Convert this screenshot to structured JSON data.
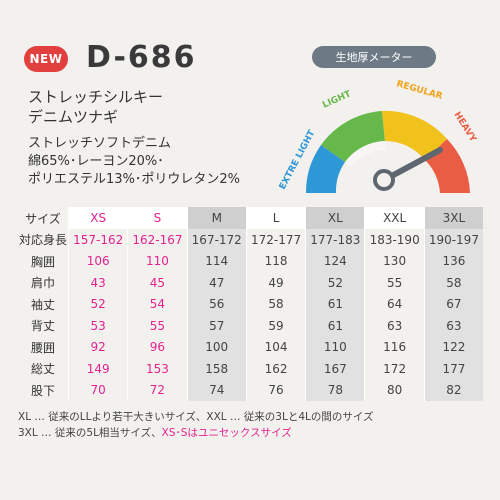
{
  "badge": "NEW",
  "model": "D-686",
  "name_lines": [
    "ストレッチシルキー",
    "デニムツナギ"
  ],
  "spec_lines": [
    "ストレッチソフトデニム",
    "綿65%･レーヨン20%･",
    "ポリエステル13%･ポリウレタン2%"
  ],
  "gauge": {
    "title": "生地厚メーター",
    "levels": [
      "EXTRE LIGHT",
      "LIGHT",
      "REGULAR",
      "HEAVY"
    ],
    "pointer_level": "HEAVY",
    "colors": {
      "extra_light": "#2e97d6",
      "light": "#67b84a",
      "regular": "#f0c21b",
      "heavy": "#ea5d45",
      "needle": "#5e6670"
    }
  },
  "table": {
    "header_label": "サイズ",
    "sizes": [
      "XS",
      "S",
      "M",
      "L",
      "XL",
      "XXL",
      "3XL"
    ],
    "rows": [
      {
        "label": "対応身長",
        "values": [
          "157-162",
          "162-167",
          "167-172",
          "172-177",
          "177-183",
          "183-190",
          "190-197"
        ]
      },
      {
        "label": "胸囲",
        "values": [
          "106",
          "110",
          "114",
          "118",
          "124",
          "130",
          "136"
        ]
      },
      {
        "label": "肩巾",
        "values": [
          "43",
          "45",
          "47",
          "49",
          "52",
          "55",
          "58"
        ]
      },
      {
        "label": "袖丈",
        "values": [
          "52",
          "54",
          "56",
          "58",
          "61",
          "64",
          "67"
        ]
      },
      {
        "label": "背丈",
        "values": [
          "53",
          "55",
          "57",
          "59",
          "61",
          "63",
          "63"
        ]
      },
      {
        "label": "腰囲",
        "values": [
          "92",
          "96",
          "100",
          "104",
          "110",
          "116",
          "122"
        ]
      },
      {
        "label": "総丈",
        "values": [
          "149",
          "153",
          "158",
          "162",
          "167",
          "172",
          "177"
        ]
      },
      {
        "label": "股下",
        "values": [
          "70",
          "72",
          "74",
          "76",
          "78",
          "80",
          "82"
        ]
      }
    ]
  },
  "notes": {
    "line1": "XL … 従来のLLより若干大きいサイズ、XXL … 従来の3Lと4Lの間のサイズ",
    "line2_plain": "3XL … 従来の5L相当サイズ、",
    "line2_pink": "XS･Sはユニセックスサイズ"
  }
}
